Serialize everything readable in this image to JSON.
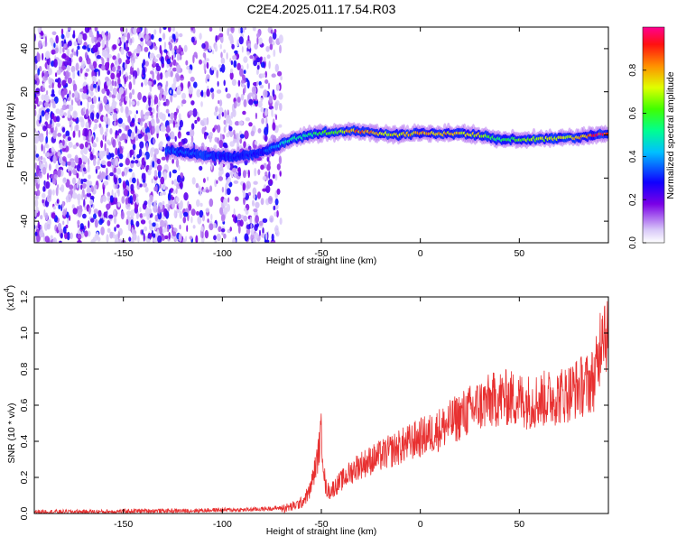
{
  "figure": {
    "title": "C2E4.2025.011.17.54.R03"
  },
  "colors": {
    "snr_line": "#e83030",
    "axis": "#000000",
    "background": "#ffffff"
  },
  "chart_data": [
    {
      "type": "heatmap",
      "title": "C2E4.2025.011.17.54.R03",
      "xlabel": "Height of straight line (km)",
      "ylabel": "Frequency (Hz)",
      "xlim": [
        -195,
        95
      ],
      "ylim": [
        -50,
        50
      ],
      "xticks": [
        -150,
        -100,
        -50,
        0,
        50
      ],
      "yticks": [
        -40,
        -20,
        0,
        20,
        40
      ],
      "colorbar": {
        "label": "Normalized spectral amplitude",
        "range": [
          0,
          1
        ],
        "ticks": [
          "0.0",
          "0.2",
          "0.4",
          "0.6",
          "0.8"
        ],
        "colormap": "rainbow (violet at 0 to red at 1)"
      },
      "noise_region_x": [
        -195,
        -70
      ],
      "signal_ridge": {
        "x": [
          -128,
          -120,
          -110,
          -100,
          -90,
          -80,
          -75,
          -70,
          -65,
          -60,
          -55,
          -50,
          -45,
          -40,
          -35,
          -30,
          -20,
          -10,
          0,
          10,
          20,
          30,
          35,
          40,
          50,
          60,
          70,
          80,
          90,
          95
        ],
        "freq_hz": [
          -7,
          -8,
          -9,
          -10,
          -10,
          -8,
          -6,
          -4,
          -2,
          -1,
          0,
          1,
          1,
          1.5,
          2,
          1.5,
          0.5,
          0,
          1,
          0.5,
          0.5,
          0,
          -1,
          -2,
          -2,
          -2,
          -1.5,
          -1,
          0,
          0
        ],
        "amplitude": [
          0.35,
          0.35,
          0.35,
          0.3,
          0.3,
          0.3,
          0.4,
          0.45,
          0.55,
          0.5,
          0.55,
          0.6,
          0.65,
          0.7,
          0.85,
          0.9,
          0.8,
          0.75,
          0.85,
          0.8,
          0.8,
          0.75,
          0.6,
          0.55,
          0.65,
          0.7,
          0.75,
          0.8,
          0.95,
          0.95
        ]
      }
    },
    {
      "type": "line",
      "xlabel": "Height of straight line (km)",
      "ylabel": "SNR (10 * v/v)",
      "y_scale_label": "(x10",
      "y_scale_exponent": "4",
      "xlim": [
        -195,
        95
      ],
      "ylim": [
        0,
        1.2
      ],
      "xticks": [
        -150,
        -100,
        -50,
        0,
        50
      ],
      "yticks": [
        "0.0",
        "0.2",
        "0.4",
        "0.6",
        "0.8",
        "1.0",
        "1.2"
      ],
      "series": [
        {
          "x": [
            -195,
            -180,
            -160,
            -140,
            -120,
            -100,
            -90,
            -80,
            -72,
            -68,
            -64,
            -60,
            -56,
            -52,
            -50,
            -48,
            -46,
            -44,
            -40,
            -36,
            -32,
            -28,
            -24,
            -20,
            -16,
            -12,
            -8,
            -4,
            0,
            5,
            10,
            15,
            20,
            25,
            30,
            35,
            40,
            45,
            50,
            55,
            60,
            65,
            70,
            75,
            80,
            85,
            88,
            90,
            92,
            95
          ],
          "y": [
            0.01,
            0.01,
            0.01,
            0.015,
            0.015,
            0.02,
            0.02,
            0.025,
            0.03,
            0.03,
            0.04,
            0.06,
            0.12,
            0.3,
            0.45,
            0.15,
            0.12,
            0.14,
            0.18,
            0.22,
            0.26,
            0.28,
            0.3,
            0.32,
            0.34,
            0.36,
            0.38,
            0.4,
            0.42,
            0.44,
            0.47,
            0.5,
            0.54,
            0.57,
            0.6,
            0.62,
            0.64,
            0.64,
            0.63,
            0.62,
            0.63,
            0.64,
            0.65,
            0.67,
            0.7,
            0.72,
            0.75,
            0.85,
            1.1,
            0.95
          ]
        }
      ]
    }
  ]
}
